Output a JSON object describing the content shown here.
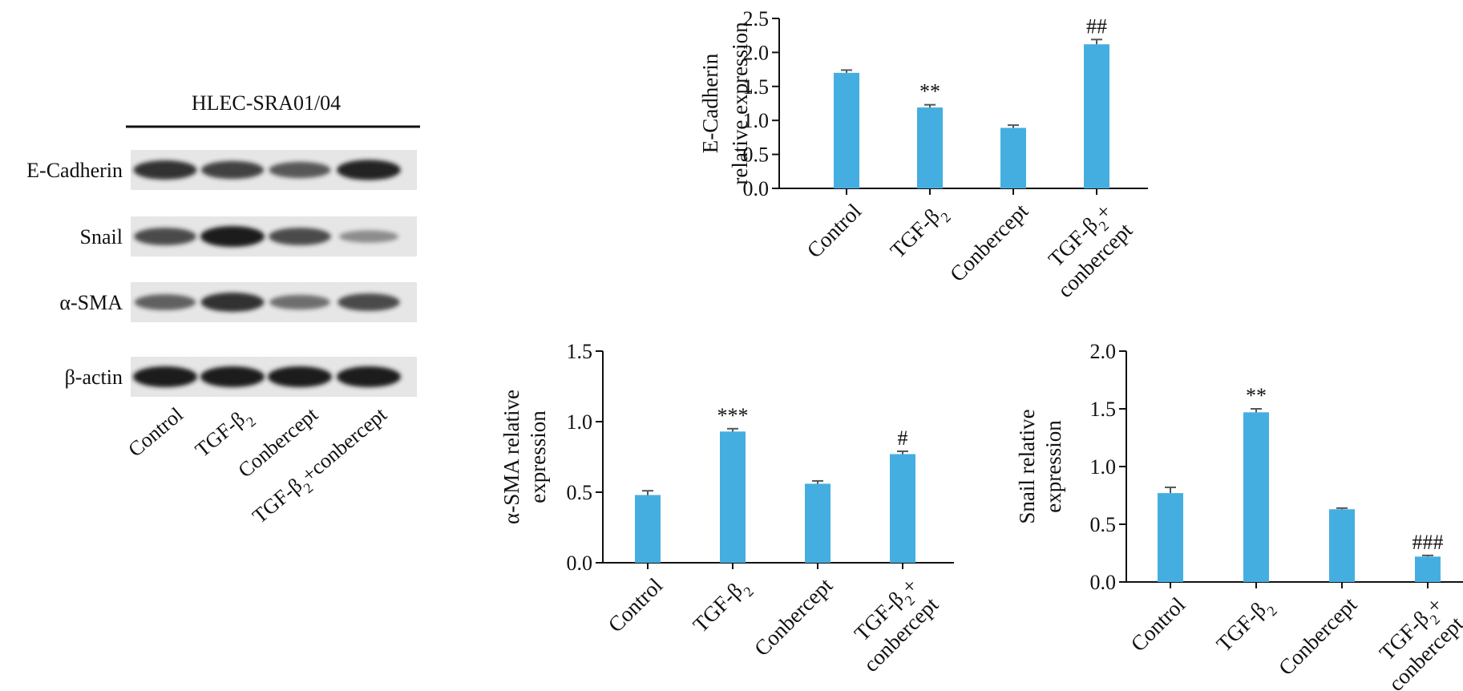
{
  "colors": {
    "bar": "#45AEE0",
    "axis": "#111111",
    "blot_bg": "#e8e8e8",
    "band": "#1a1a1a"
  },
  "western_blot": {
    "cell_line": "HLEC-SRA01/04",
    "rows": [
      "E-Cadherin",
      "Snail",
      "α-SMA",
      "β-actin"
    ],
    "lanes": [
      {
        "parts": [
          {
            "t": "Control"
          }
        ]
      },
      {
        "parts": [
          {
            "t": "TGF-β"
          },
          {
            "t": "2",
            "sub": true
          }
        ]
      },
      {
        "parts": [
          {
            "t": "Conbercept"
          }
        ]
      },
      {
        "parts": [
          {
            "t": "TGF-β"
          },
          {
            "t": "2",
            "sub": true
          },
          {
            "t": "+conbercept"
          }
        ]
      }
    ],
    "band_intensity": [
      [
        0.85,
        0.75,
        0.6,
        0.95
      ],
      [
        0.7,
        1.0,
        0.7,
        0.25
      ],
      [
        0.55,
        0.85,
        0.45,
        0.7
      ],
      [
        1.0,
        1.0,
        1.0,
        1.0
      ]
    ]
  },
  "chart_data": [
    {
      "type": "bar",
      "ylabel": [
        "E-Cadherin",
        "relative expression"
      ],
      "categories": [
        [
          {
            "parts": [
              {
                "t": "Control"
              }
            ]
          }
        ],
        [
          {
            "parts": [
              {
                "t": "TGF-β"
              },
              {
                "t": "2",
                "sub": true
              }
            ]
          }
        ],
        [
          {
            "parts": [
              {
                "t": "Conbercept"
              }
            ]
          }
        ],
        [
          {
            "parts": [
              {
                "t": "TGF-β"
              },
              {
                "t": "2",
                "sub": true
              },
              {
                "t": "+"
              }
            ]
          },
          {
            "parts": [
              {
                "t": "conbercept"
              }
            ]
          }
        ]
      ],
      "values": [
        1.7,
        1.19,
        0.89,
        2.12
      ],
      "errors": [
        0.04,
        0.04,
        0.04,
        0.07
      ],
      "significance": [
        "",
        "**",
        "",
        "##"
      ],
      "ylim": [
        0,
        2.5
      ],
      "yticks": [
        "0.0",
        "0.5",
        "1.0",
        "1.5",
        "2.0",
        "2.5"
      ]
    },
    {
      "type": "bar",
      "ylabel": [
        "α-SMA relative",
        "expression"
      ],
      "categories": [
        [
          {
            "parts": [
              {
                "t": "Control"
              }
            ]
          }
        ],
        [
          {
            "parts": [
              {
                "t": "TGF-β"
              },
              {
                "t": "2",
                "sub": true
              }
            ]
          }
        ],
        [
          {
            "parts": [
              {
                "t": "Conbercept"
              }
            ]
          }
        ],
        [
          {
            "parts": [
              {
                "t": "TGF-β"
              },
              {
                "t": "2",
                "sub": true
              },
              {
                "t": "+"
              }
            ]
          },
          {
            "parts": [
              {
                "t": "conbercept"
              }
            ]
          }
        ]
      ],
      "values": [
        0.48,
        0.93,
        0.56,
        0.77
      ],
      "errors": [
        0.03,
        0.02,
        0.02,
        0.02
      ],
      "significance": [
        "",
        "***",
        "",
        "#"
      ],
      "ylim": [
        0,
        1.5
      ],
      "yticks": [
        "0.0",
        "0.5",
        "1.0",
        "1.5"
      ]
    },
    {
      "type": "bar",
      "ylabel": [
        "Snail relative",
        "expression"
      ],
      "categories": [
        [
          {
            "parts": [
              {
                "t": "Control"
              }
            ]
          }
        ],
        [
          {
            "parts": [
              {
                "t": "TGF-β"
              },
              {
                "t": "2",
                "sub": true
              }
            ]
          }
        ],
        [
          {
            "parts": [
              {
                "t": "Conbercept"
              }
            ]
          }
        ],
        [
          {
            "parts": [
              {
                "t": "TGF-β"
              },
              {
                "t": "2",
                "sub": true
              },
              {
                "t": "+"
              }
            ]
          },
          {
            "parts": [
              {
                "t": "conbercept"
              }
            ]
          }
        ]
      ],
      "values": [
        0.77,
        1.47,
        0.63,
        0.22
      ],
      "errors": [
        0.05,
        0.03,
        0.01,
        0.01
      ],
      "significance": [
        "",
        "**",
        "",
        "###"
      ],
      "ylim": [
        0,
        2.0
      ],
      "yticks": [
        "0.0",
        "0.5",
        "1.0",
        "1.5",
        "2.0"
      ]
    }
  ]
}
